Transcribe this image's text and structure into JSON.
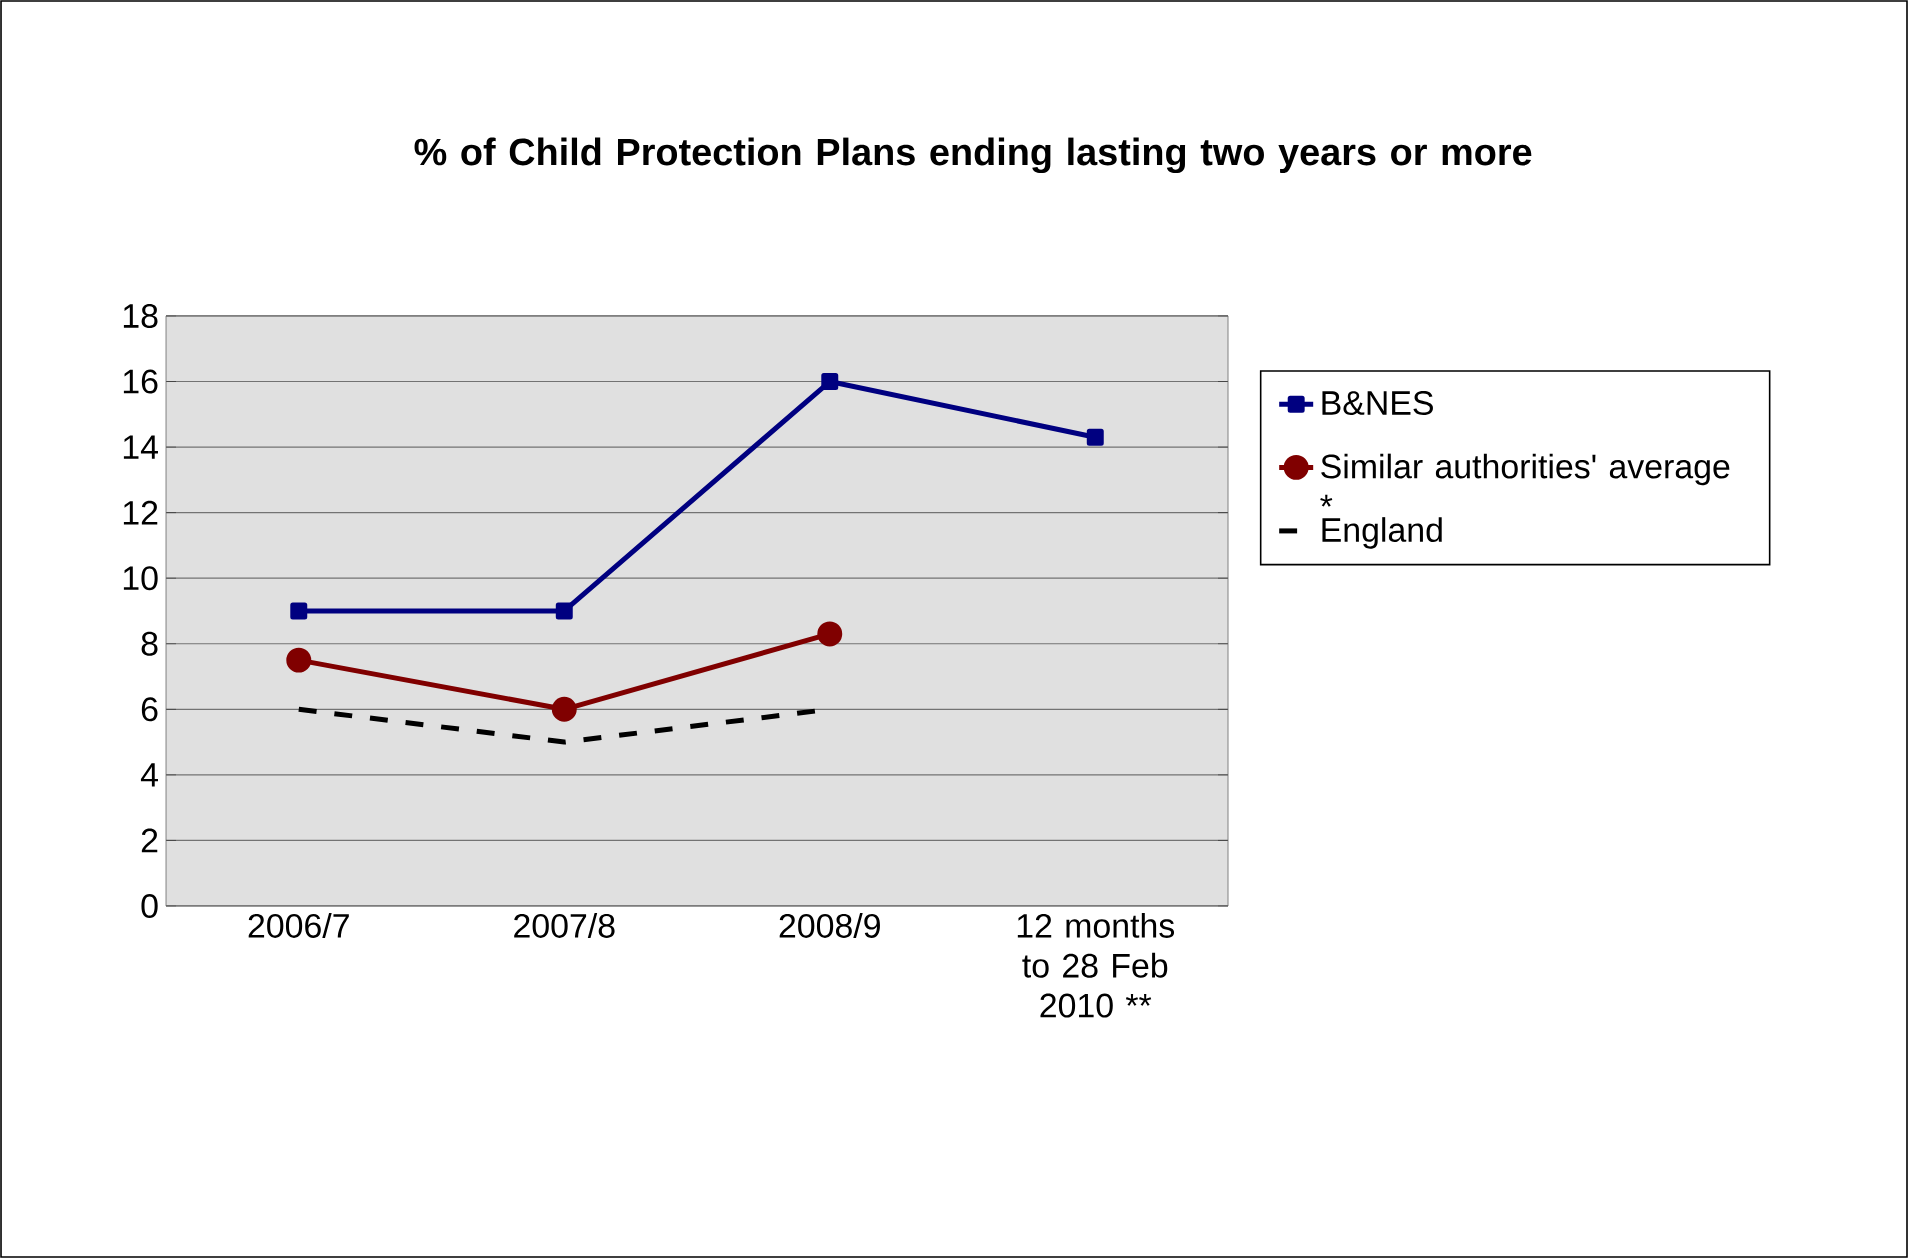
{
  "chart_data": {
    "type": "line",
    "title": "% of Child Protection Plans ending lasting two years or more",
    "categories": [
      "2006/7",
      "2007/8",
      "2008/9",
      "12 months to 28 Feb 2010 **"
    ],
    "series": [
      {
        "name": "B&NES",
        "color": "#000080",
        "values": [
          9,
          9,
          16,
          14.3
        ],
        "marker": "square",
        "line_style": "solid"
      },
      {
        "name": "Similar authorities' average *",
        "color": "#800000",
        "values": [
          7.5,
          6,
          8.3,
          null
        ],
        "marker": "circle",
        "line_style": "solid"
      },
      {
        "name": "England",
        "color": "#000000",
        "values": [
          6,
          5,
          6,
          null
        ],
        "marker": "none",
        "line_style": "dashed"
      }
    ],
    "ylim": [
      0,
      18
    ],
    "yticks": [
      0,
      2,
      4,
      6,
      8,
      10,
      12,
      14,
      16,
      18
    ],
    "grid": "y",
    "legend": "right"
  }
}
